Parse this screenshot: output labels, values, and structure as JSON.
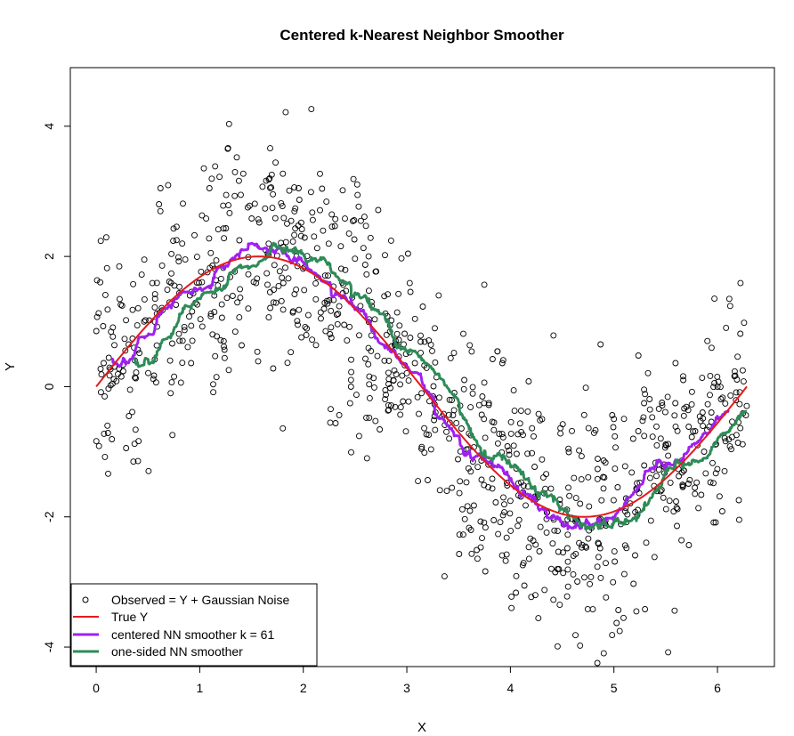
{
  "chart_data": {
    "type": "scatter",
    "title": "Centered k-Nearest Neighbor Smoother",
    "xlabel": "X",
    "ylabel": "Y",
    "xlim": [
      -0.25,
      6.55
    ],
    "ylim": [
      -4.3,
      4.9
    ],
    "xticks": [
      0,
      1,
      2,
      3,
      4,
      5,
      6
    ],
    "yticks": [
      -4,
      -2,
      0,
      2,
      4
    ],
    "grid": false,
    "legend_position": "bottom-left",
    "n_points": 1000,
    "noise_sd": 0.9,
    "series": [
      {
        "name": "Observed = Y + Gaussian Noise",
        "kind": "points",
        "color": "#000000"
      },
      {
        "name": "True Y",
        "kind": "line",
        "color": "#e41a1c",
        "function": "y = 2*sin(x)",
        "x_range": [
          0,
          6.2832
        ]
      },
      {
        "name": "centered NN smoother k = 61",
        "kind": "line",
        "color": "#a020f0",
        "x_range": [
          0.19,
          6.1
        ]
      },
      {
        "name": "one-sided NN smoother",
        "kind": "line",
        "color": "#2e8b57",
        "x_range": [
          0.38,
          6.28
        ]
      }
    ]
  }
}
